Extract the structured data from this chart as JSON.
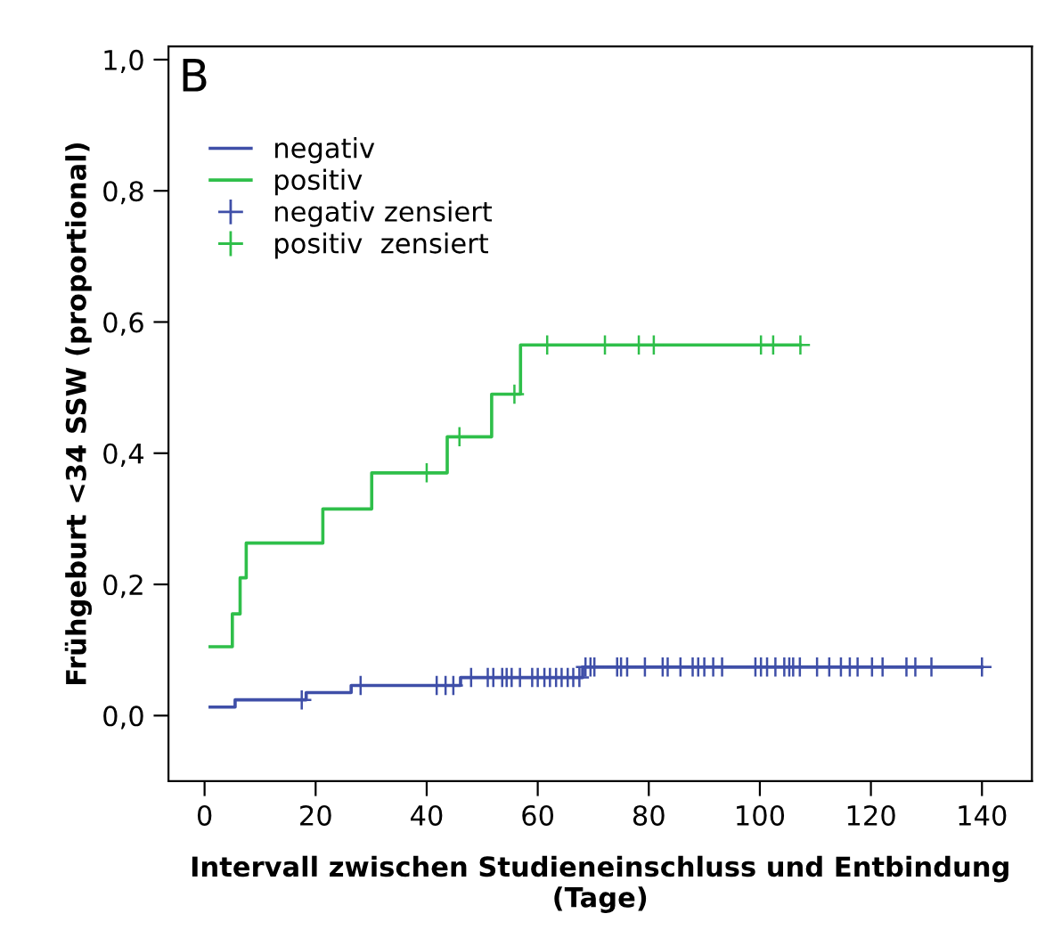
{
  "chart_data": {
    "type": "step",
    "xlabel": "Intervall zwischen Studieneinschluss und Entbindung\n(Tage)",
    "ylabel": "Frühgeburt <34 SSW (proportional)",
    "annotations": [
      "B"
    ],
    "xlim": [
      -6.5,
      149
    ],
    "ylim": [
      -0.1,
      1.02
    ],
    "xticks": [
      0,
      20,
      40,
      60,
      80,
      100,
      120,
      140
    ],
    "yticks": [
      {
        "value": 0,
        "label": "0,0"
      },
      {
        "value": 0.2,
        "label": "0,2"
      },
      {
        "value": 0.4,
        "label": "0,4"
      },
      {
        "value": 0.6,
        "label": "0,6"
      },
      {
        "value": 0.8,
        "label": "0,8"
      },
      {
        "value": 1,
        "label": "1,0"
      }
    ],
    "grid": false,
    "legend": "top left",
    "line_style": "solid",
    "series": [
      {
        "name": "negativ",
        "color": "#3f4fa8",
        "x": [
          1,
          5.5,
          18.3,
          26.4,
          46.1,
          68.1,
          140
        ],
        "values": [
          0.013,
          0.024,
          0.035,
          0.046,
          0.058,
          0.074,
          0.074
        ]
      },
      {
        "name": "positiv",
        "color": "#2fbf4a",
        "x": [
          1,
          5,
          6.4,
          7.5,
          21.3,
          30.1,
          43.7,
          51.7,
          56.9,
          107.3
        ],
        "values": [
          0.105,
          0.155,
          0.21,
          0.263,
          0.315,
          0.37,
          0.425,
          0.49,
          0.565,
          0.565
        ]
      },
      {
        "name": "negativ zensiert",
        "type": "scatter",
        "marker": "cross",
        "color": "#3f4fa8",
        "x": [
          17.5,
          28.1,
          41.8,
          43.4,
          44.8,
          48.0,
          51.0,
          52.0,
          53.6,
          54.4,
          55.3,
          56.8,
          59.0,
          60.0,
          61.2,
          62.2,
          63.3,
          64.3,
          65.4,
          66.4,
          67.5,
          68.6,
          69.5,
          70.2,
          74.3,
          75.0,
          76.1,
          79.3,
          82.5,
          83.4,
          85.7,
          87.9,
          88.9,
          90.0,
          91.6,
          93.2,
          99.2,
          100.2,
          101.3,
          102.8,
          104.4,
          105.3,
          106.0,
          107.2,
          110.3,
          112.5,
          114.6,
          116.2,
          117.6,
          120.2,
          122.1,
          126.4,
          128.0,
          130.9,
          140
        ],
        "values": [
          0.024,
          0.046,
          0.046,
          0.046,
          0.046,
          0.058,
          0.058,
          0.058,
          0.058,
          0.058,
          0.058,
          0.058,
          0.058,
          0.058,
          0.058,
          0.058,
          0.058,
          0.058,
          0.058,
          0.058,
          0.058,
          0.074,
          0.074,
          0.074,
          0.074,
          0.074,
          0.074,
          0.074,
          0.074,
          0.074,
          0.074,
          0.074,
          0.074,
          0.074,
          0.074,
          0.074,
          0.074,
          0.074,
          0.074,
          0.074,
          0.074,
          0.074,
          0.074,
          0.074,
          0.074,
          0.074,
          0.074,
          0.074,
          0.074,
          0.074,
          0.074,
          0.074,
          0.074,
          0.074,
          0.074
        ]
      },
      {
        "name": "positiv  zensiert",
        "type": "scatter",
        "marker": "cross",
        "color": "#2fbf4a",
        "x": [
          40,
          45.9,
          55.8,
          61.7,
          72.1,
          78.2,
          80.9,
          100.2,
          102.4,
          107.3
        ],
        "values": [
          0.37,
          0.425,
          0.49,
          0.565,
          0.565,
          0.565,
          0.565,
          0.565,
          0.565,
          0.565
        ]
      }
    ]
  }
}
